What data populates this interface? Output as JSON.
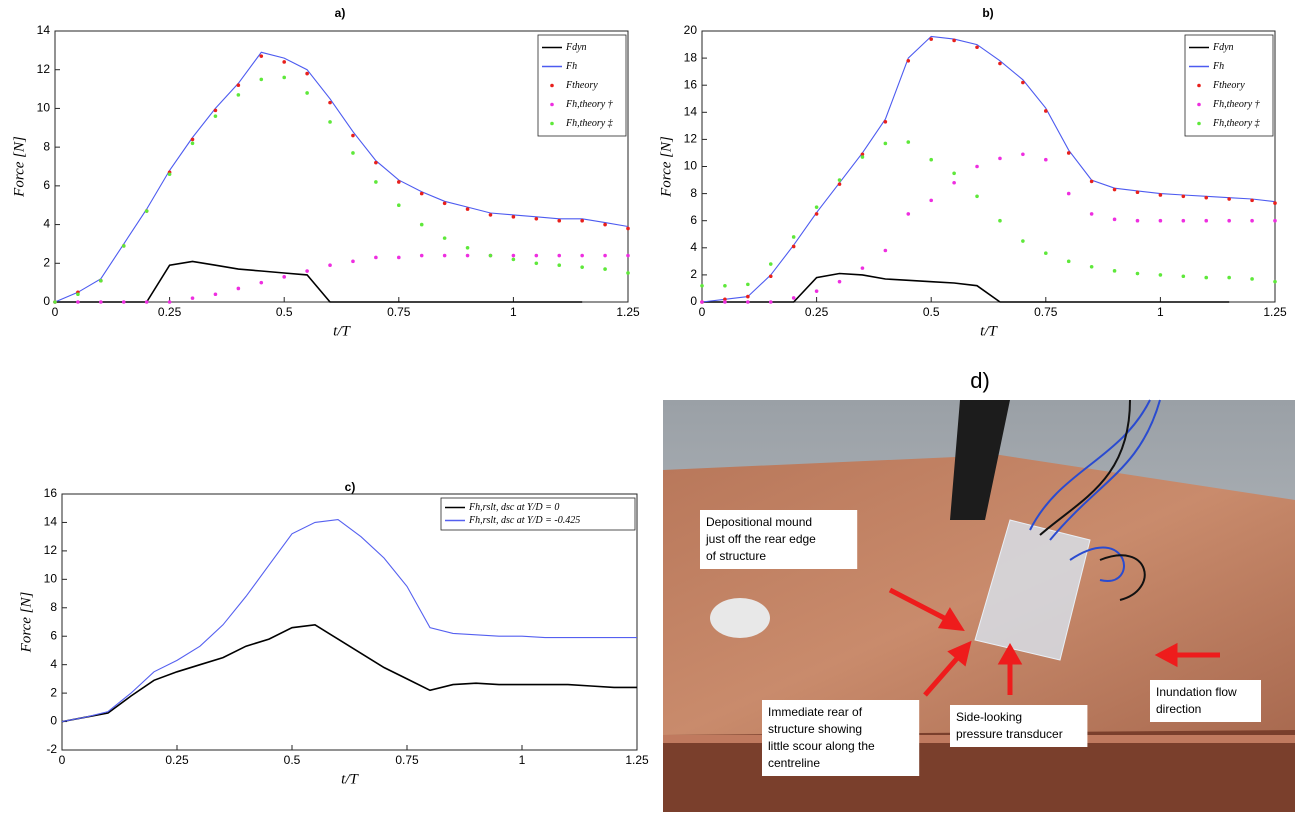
{
  "chart_data": [
    {
      "type": "line",
      "title": "a)",
      "xlabel": "t/T",
      "ylabel": "Force [N]",
      "x": [
        0,
        0.05,
        0.1,
        0.15,
        0.2,
        0.25,
        0.3,
        0.35,
        0.4,
        0.45,
        0.5,
        0.55,
        0.6,
        0.65,
        0.7,
        0.75,
        0.8,
        0.85,
        0.9,
        0.95,
        1,
        1.05,
        1.1,
        1.15,
        1.2,
        1.25
      ],
      "xlim": [
        0,
        1.25
      ],
      "xticks": [
        0,
        0.25,
        0.5,
        0.75,
        1,
        1.25
      ],
      "ylim": [
        0,
        14
      ],
      "yticks": [
        0,
        2,
        4,
        6,
        8,
        10,
        12,
        14
      ],
      "legend": "upper right",
      "series": [
        {
          "name": "Fdyn",
          "color": "#000000",
          "style": "line",
          "values": [
            0,
            0,
            0,
            0,
            0,
            1.9,
            2.1,
            1.9,
            1.7,
            1.6,
            1.5,
            1.4,
            0,
            0,
            0,
            0,
            0,
            0,
            0,
            0,
            0,
            0,
            0,
            0,
            null,
            null
          ]
        },
        {
          "name": "Fh",
          "color": "#4d5bf0",
          "style": "line",
          "values": [
            0,
            0.5,
            1.2,
            3.0,
            4.8,
            6.8,
            8.5,
            10.0,
            11.3,
            12.9,
            12.6,
            12.0,
            10.5,
            8.8,
            7.3,
            6.3,
            5.7,
            5.2,
            4.9,
            4.6,
            4.5,
            4.4,
            4.3,
            4.3,
            4.1,
            3.9
          ]
        },
        {
          "name": "Ftheory",
          "color": "#e8201c",
          "style": "points",
          "values": [
            0,
            0.5,
            1.1,
            2.9,
            4.7,
            6.7,
            8.4,
            9.9,
            11.2,
            12.7,
            12.4,
            11.8,
            10.3,
            8.6,
            7.2,
            6.2,
            5.6,
            5.1,
            4.8,
            4.5,
            4.4,
            4.3,
            4.2,
            4.2,
            4.0,
            3.8
          ]
        },
        {
          "name": "Fh,theory †",
          "color": "#ee2ee0",
          "style": "points",
          "values": [
            0,
            0,
            0,
            0,
            0,
            0,
            0.2,
            0.4,
            0.7,
            1.0,
            1.3,
            1.6,
            1.9,
            2.1,
            2.3,
            2.3,
            2.4,
            2.4,
            2.4,
            2.4,
            2.4,
            2.4,
            2.4,
            2.4,
            2.4,
            2.4
          ]
        },
        {
          "name": "Fh,theory ‡",
          "color": "#5ee83a",
          "style": "points",
          "values": [
            0,
            0.4,
            1.1,
            2.9,
            4.7,
            6.6,
            8.2,
            9.6,
            10.7,
            11.5,
            11.6,
            10.8,
            9.3,
            7.7,
            6.2,
            5.0,
            4.0,
            3.3,
            2.8,
            2.4,
            2.2,
            2.0,
            1.9,
            1.8,
            1.7,
            1.5
          ]
        }
      ]
    },
    {
      "type": "line",
      "title": "b)",
      "xlabel": "t/T",
      "ylabel": "Force [N]",
      "x": [
        0,
        0.05,
        0.1,
        0.15,
        0.2,
        0.25,
        0.3,
        0.35,
        0.4,
        0.45,
        0.5,
        0.55,
        0.6,
        0.65,
        0.7,
        0.75,
        0.8,
        0.85,
        0.9,
        0.95,
        1,
        1.05,
        1.1,
        1.15,
        1.2,
        1.25
      ],
      "xlim": [
        0,
        1.25
      ],
      "xticks": [
        0,
        0.25,
        0.5,
        0.75,
        1,
        1.25
      ],
      "ylim": [
        0,
        20
      ],
      "yticks": [
        0,
        2,
        4,
        6,
        8,
        10,
        12,
        14,
        16,
        18,
        20
      ],
      "legend": "upper right",
      "series": [
        {
          "name": "Fdyn",
          "color": "#000000",
          "style": "line",
          "values": [
            0,
            0,
            0,
            0,
            0,
            1.8,
            2.1,
            2.0,
            1.7,
            1.6,
            1.5,
            1.4,
            1.2,
            0,
            0,
            0,
            0,
            0,
            0,
            0,
            0,
            0,
            0,
            0,
            null,
            null
          ]
        },
        {
          "name": "Fh",
          "color": "#4d5bf0",
          "style": "line",
          "values": [
            0,
            0.2,
            0.4,
            2.0,
            4.2,
            6.6,
            8.8,
            11.0,
            13.5,
            18.0,
            19.6,
            19.4,
            19.0,
            17.8,
            16.4,
            14.3,
            11.2,
            9.0,
            8.4,
            8.2,
            8.0,
            7.9,
            7.8,
            7.7,
            7.6,
            7.4
          ]
        },
        {
          "name": "Ftheory",
          "color": "#e8201c",
          "style": "points",
          "values": [
            0,
            0.2,
            0.4,
            1.9,
            4.1,
            6.5,
            8.7,
            10.9,
            13.3,
            17.8,
            19.4,
            19.3,
            18.8,
            17.6,
            16.2,
            14.1,
            11.0,
            8.9,
            8.3,
            8.1,
            7.9,
            7.8,
            7.7,
            7.6,
            7.5,
            7.3
          ]
        },
        {
          "name": "Fh,theory †",
          "color": "#ee2ee0",
          "style": "points",
          "values": [
            0,
            0,
            0,
            0,
            0.3,
            0.8,
            1.5,
            2.5,
            3.8,
            6.5,
            7.5,
            8.8,
            10.0,
            10.6,
            10.9,
            10.5,
            8.0,
            6.5,
            6.1,
            6.0,
            6.0,
            6.0,
            6.0,
            6.0,
            6.0,
            6.0
          ]
        },
        {
          "name": "Fh,theory ‡",
          "color": "#5ee83a",
          "style": "points",
          "values": [
            1.2,
            1.2,
            1.3,
            2.8,
            4.8,
            7.0,
            9.0,
            10.7,
            11.7,
            11.8,
            10.5,
            9.5,
            7.8,
            6.0,
            4.5,
            3.6,
            3.0,
            2.6,
            2.3,
            2.1,
            2.0,
            1.9,
            1.8,
            1.8,
            1.7,
            1.5
          ]
        }
      ]
    },
    {
      "type": "line",
      "title": "c)",
      "xlabel": "t/T",
      "ylabel": "Force [N]",
      "x": [
        0,
        0.05,
        0.1,
        0.15,
        0.2,
        0.25,
        0.3,
        0.35,
        0.4,
        0.45,
        0.5,
        0.55,
        0.6,
        0.65,
        0.7,
        0.75,
        0.8,
        0.85,
        0.9,
        0.95,
        1,
        1.05,
        1.1,
        1.15,
        1.2,
        1.25
      ],
      "xlim": [
        0,
        1.25
      ],
      "xticks": [
        0,
        0.25,
        0.5,
        0.75,
        1,
        1.25
      ],
      "ylim": [
        -2,
        16
      ],
      "yticks": [
        -2,
        0,
        2,
        4,
        6,
        8,
        10,
        12,
        14,
        16
      ],
      "legend": "upper right",
      "series": [
        {
          "name": "Fh,rslt, dsc at Y/D = 0",
          "color": "#000000",
          "style": "line",
          "values": [
            0,
            0.3,
            0.6,
            1.8,
            2.9,
            3.5,
            4.0,
            4.5,
            5.3,
            5.8,
            6.6,
            6.8,
            5.8,
            4.8,
            3.8,
            3.0,
            2.2,
            2.6,
            2.7,
            2.6,
            2.6,
            2.6,
            2.6,
            2.5,
            2.4,
            2.4
          ]
        },
        {
          "name": "Fh,rslt, dsc at Y/D = -0.425",
          "color": "#5560f0",
          "style": "line",
          "values": [
            0,
            0.3,
            0.7,
            2.0,
            3.5,
            4.3,
            5.3,
            6.8,
            8.8,
            11.0,
            13.2,
            14.0,
            14.2,
            13.0,
            11.5,
            9.5,
            6.6,
            6.2,
            6.1,
            6.0,
            6.0,
            5.9,
            5.9,
            5.9,
            5.9,
            5.9
          ]
        }
      ]
    }
  ],
  "photo": {
    "label": "d)",
    "annotations": [
      [
        "Depositional mound",
        "just off the rear edge",
        "of structure"
      ],
      [
        "Immediate rear of",
        "structure showing",
        "little scour along the",
        "centreline"
      ],
      [
        "Side-looking",
        "pressure transducer"
      ],
      [
        "Inundation flow",
        "direction"
      ]
    ]
  }
}
